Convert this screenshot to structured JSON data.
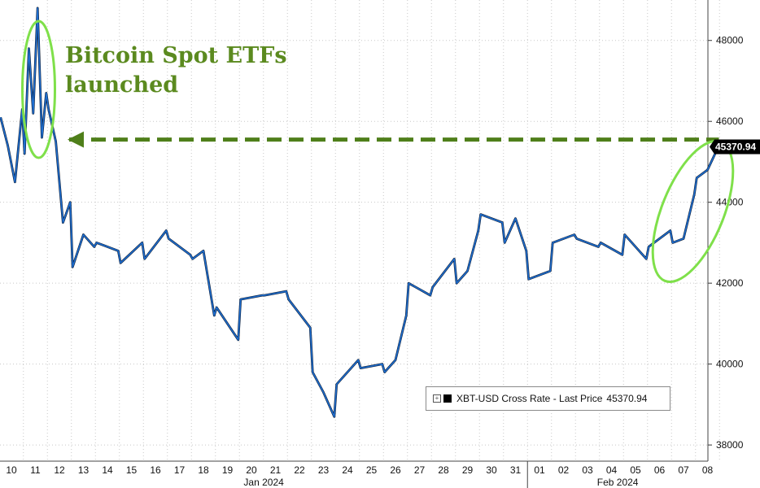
{
  "chart_data": {
    "type": "line",
    "title": "",
    "xlabel": "",
    "ylabel": "",
    "ylim": [
      37600,
      49000
    ],
    "yticks": [
      38000,
      40000,
      42000,
      44000,
      46000,
      48000
    ],
    "grid": true,
    "legend_position": "bottom-right",
    "y_axis_side": "right",
    "x_tick_labels": [
      "10",
      "11",
      "12",
      "13",
      "14",
      "15",
      "16",
      "17",
      "18",
      "19",
      "20",
      "21",
      "22",
      "23",
      "24",
      "25",
      "26",
      "27",
      "28",
      "29",
      "30",
      "31",
      "01",
      "02",
      "03",
      "04",
      "05",
      "06",
      "07",
      "08"
    ],
    "month_labels": [
      "Jan 2024",
      "Feb 2024"
    ],
    "series": [
      {
        "name": "XBT-USD Cross Rate - Last Price",
        "color": "#1f6fd1",
        "points": [
          [
            "10",
            46100
          ],
          [
            "10",
            45400
          ],
          [
            "10",
            44500
          ],
          [
            "10",
            46300
          ],
          [
            "11",
            45200
          ],
          [
            "11",
            47800
          ],
          [
            "11",
            46200
          ],
          [
            "11",
            48800
          ],
          [
            "11",
            45600
          ],
          [
            "11",
            46700
          ],
          [
            "12",
            46300
          ],
          [
            "12",
            45500
          ],
          [
            "12",
            43500
          ],
          [
            "12",
            44000
          ],
          [
            "13",
            42400
          ],
          [
            "13",
            43200
          ],
          [
            "13",
            42900
          ],
          [
            "14",
            43000
          ],
          [
            "14",
            42800
          ],
          [
            "15",
            42500
          ],
          [
            "15",
            43000
          ],
          [
            "16",
            42600
          ],
          [
            "16",
            43300
          ],
          [
            "17",
            43100
          ],
          [
            "17",
            42700
          ],
          [
            "18",
            42600
          ],
          [
            "18",
            42800
          ],
          [
            "18",
            41200
          ],
          [
            "19",
            41400
          ],
          [
            "19",
            40600
          ],
          [
            "20",
            41600
          ],
          [
            "20",
            41700
          ],
          [
            "21",
            41700
          ],
          [
            "21",
            41800
          ],
          [
            "22",
            41600
          ],
          [
            "22",
            40900
          ],
          [
            "23",
            39800
          ],
          [
            "23",
            39300
          ],
          [
            "23",
            38700
          ],
          [
            "24",
            39500
          ],
          [
            "24",
            40100
          ],
          [
            "25",
            39900
          ],
          [
            "25",
            40000
          ],
          [
            "26",
            39800
          ],
          [
            "26",
            40100
          ],
          [
            "26",
            41200
          ],
          [
            "27",
            42000
          ],
          [
            "27",
            41700
          ],
          [
            "28",
            41900
          ],
          [
            "28",
            42600
          ],
          [
            "29",
            42000
          ],
          [
            "29",
            42300
          ],
          [
            "29",
            43300
          ],
          [
            "30",
            43700
          ],
          [
            "30",
            43500
          ],
          [
            "31",
            43000
          ],
          [
            "31",
            43600
          ],
          [
            "31",
            42800
          ],
          [
            "01",
            42100
          ],
          [
            "01",
            42300
          ],
          [
            "02",
            43000
          ],
          [
            "02",
            43200
          ],
          [
            "03",
            43100
          ],
          [
            "03",
            42900
          ],
          [
            "04",
            43000
          ],
          [
            "04",
            42700
          ],
          [
            "05",
            43200
          ],
          [
            "05",
            42600
          ],
          [
            "06",
            42900
          ],
          [
            "06",
            43300
          ],
          [
            "07",
            43000
          ],
          [
            "07",
            43100
          ],
          [
            "07",
            44200
          ],
          [
            "08",
            44600
          ],
          [
            "08",
            44800
          ],
          [
            "08",
            45370.94
          ]
        ]
      }
    ],
    "reference_line": {
      "value": 45550,
      "from": "12",
      "to": "08",
      "style": "dashed",
      "color": "#4f7f1a"
    },
    "last_price_label": "45370.94",
    "annotations": [
      "Bitcoin Spot ETFs",
      "launched"
    ],
    "highlight_ellipses": [
      {
        "around": "11",
        "color": "#7fe04a"
      },
      {
        "around": "08",
        "color": "#7fe04a"
      }
    ]
  },
  "legend": {
    "label": "XBT-USD Cross Rate - Last Price",
    "value": "45370.94",
    "plus_icon": "expand-icon"
  }
}
